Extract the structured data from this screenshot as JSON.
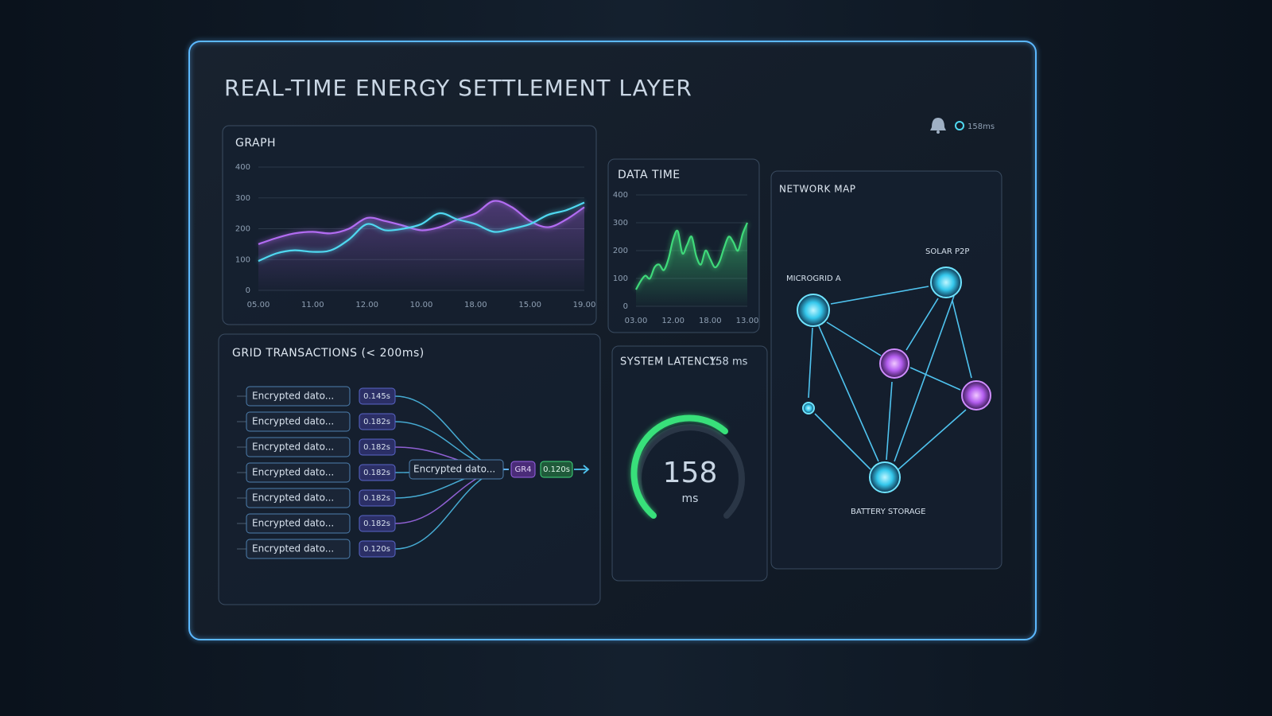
{
  "header": {
    "title": "REAL-TIME ENERGY SETTLEMENT LAYER",
    "status": "158ms"
  },
  "graph": {
    "type": "line",
    "title": "GRAPH",
    "categories": [
      "05.00",
      null,
      null,
      "11.00",
      null,
      null,
      "12.00",
      null,
      null,
      "10.00",
      null,
      null,
      "18.00",
      null,
      null,
      "15.00",
      null,
      null,
      "19.00"
    ],
    "series": [
      {
        "color": "#b26cf2",
        "values": [
          150,
          170,
          185,
          190,
          185,
          200,
          235,
          225,
          210,
          195,
          205,
          230,
          250,
          290,
          270,
          225,
          205,
          230,
          270
        ]
      },
      {
        "color": "#4fd8f0",
        "values": [
          95,
          120,
          130,
          125,
          130,
          165,
          215,
          195,
          200,
          215,
          250,
          230,
          215,
          190,
          200,
          215,
          245,
          260,
          285
        ]
      }
    ],
    "ylim": [
      0,
      400
    ],
    "yticks": [
      0,
      100,
      200,
      300,
      400
    ],
    "grid": true
  },
  "data_time": {
    "type": "area",
    "title": "DATA TIME",
    "categories": [
      "03.00",
      null,
      null,
      null,
      null,
      null,
      null,
      null,
      "12.00",
      null,
      null,
      null,
      null,
      null,
      null,
      null,
      "18.00",
      null,
      null,
      null,
      null,
      null,
      null,
      null,
      "13.00"
    ],
    "series": [
      {
        "color": "#3fd97a",
        "values": [
          60,
          90,
          110,
          100,
          140,
          150,
          130,
          170,
          240,
          270,
          190,
          220,
          250,
          180,
          150,
          200,
          170,
          140,
          160,
          210,
          250,
          230,
          200,
          260,
          300
        ]
      }
    ],
    "ylim": [
      0,
      400
    ],
    "yticks": [
      0,
      100,
      200,
      300,
      400
    ],
    "grid": true
  },
  "transactions": {
    "title": "GRID TRANSACTIONS (< 200ms)",
    "rows": [
      [
        "Encrypted dato...",
        "0.145s"
      ],
      [
        "Encrypted dato...",
        "0.182s"
      ],
      [
        "Encrypted dato...",
        "0.182s"
      ],
      [
        "Encrypted dato...",
        "0.182s"
      ],
      [
        "Encrypted dato...",
        "0.182s"
      ],
      [
        "Encrypted dato...",
        "0.182s"
      ],
      [
        "Encrypted dato...",
        "0.120s"
      ]
    ],
    "merge": {
      "label": "Encrypted dato...",
      "tag": "GR4",
      "time": "0.120s"
    }
  },
  "latency": {
    "title": "SYSTEM LATENCY:",
    "value_label": "158 ms",
    "gauge_value": 158,
    "gauge_unit": "ms"
  },
  "network": {
    "title": "NETWORK MAP",
    "nodes": [
      "MICROGRID A",
      "SOLAR P2P",
      "BATTERY STORAGE"
    ]
  }
}
